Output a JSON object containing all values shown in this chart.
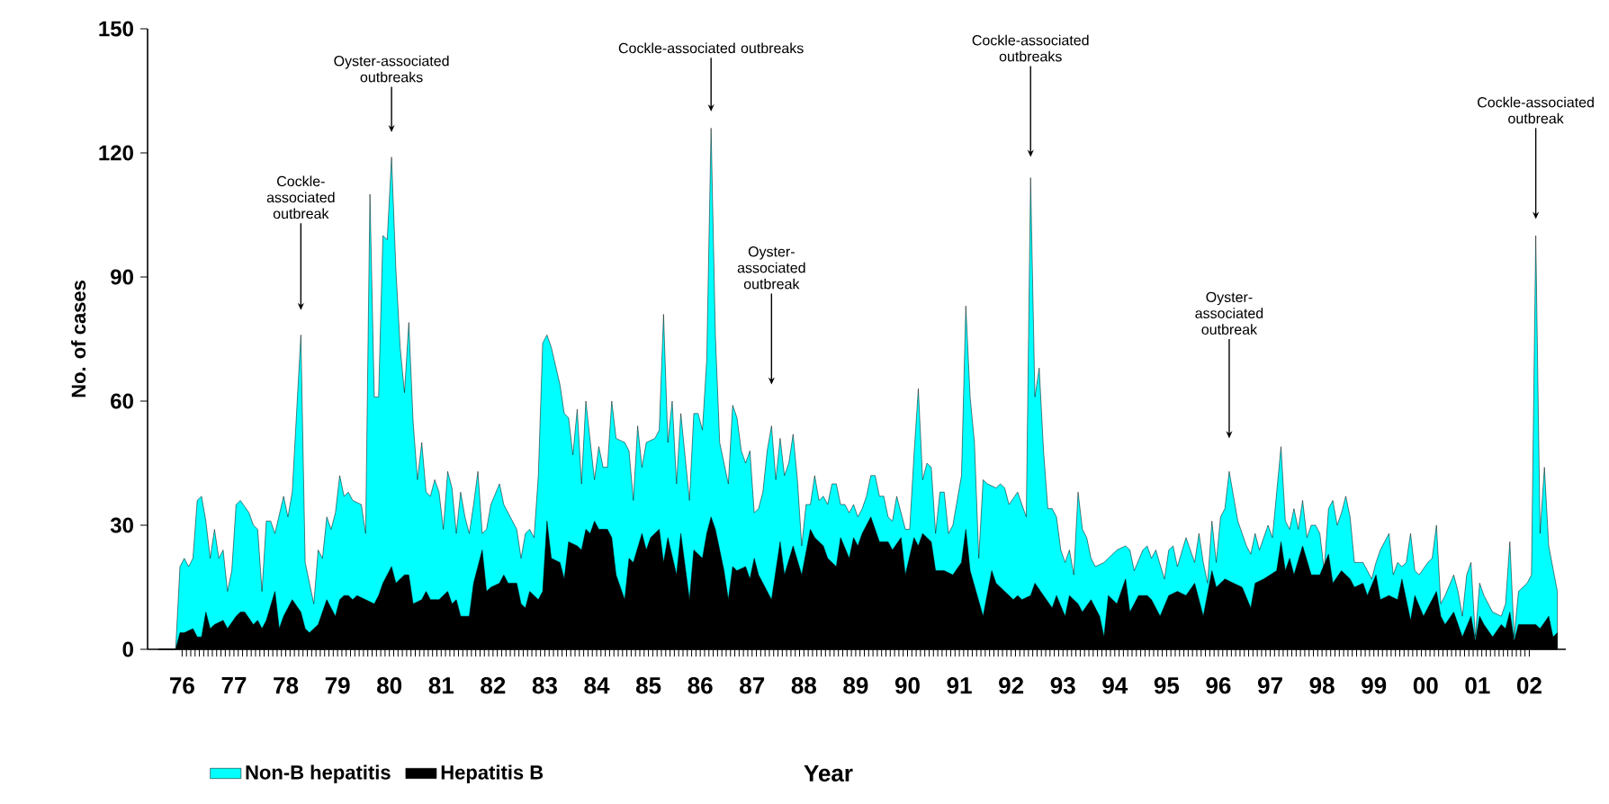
{
  "chart_data": {
    "type": "area",
    "xlabel": "Year",
    "ylabel": "No. of cases",
    "xlim": [
      "1975-11-01",
      "2003-03-15"
    ],
    "ylim": [
      0,
      150
    ],
    "yticks": [
      0,
      30,
      60,
      90,
      120,
      150
    ],
    "xticks": [
      {
        "value": "1976-07-01",
        "label": "76"
      },
      {
        "value": "1977-07-01",
        "label": "77"
      },
      {
        "value": "1978-07-01",
        "label": "78"
      },
      {
        "value": "1979-07-01",
        "label": "79"
      },
      {
        "value": "1980-07-01",
        "label": "80"
      },
      {
        "value": "1981-07-01",
        "label": "81"
      },
      {
        "value": "1982-07-01",
        "label": "82"
      },
      {
        "value": "1983-07-01",
        "label": "83"
      },
      {
        "value": "1984-07-01",
        "label": "84"
      },
      {
        "value": "1985-07-01",
        "label": "85"
      },
      {
        "value": "1986-07-01",
        "label": "86"
      },
      {
        "value": "1987-07-01",
        "label": "87"
      },
      {
        "value": "1988-07-01",
        "label": "88"
      },
      {
        "value": "1989-07-01",
        "label": "89"
      },
      {
        "value": "1990-07-01",
        "label": "90"
      },
      {
        "value": "1991-07-01",
        "label": "91"
      },
      {
        "value": "1992-07-01",
        "label": "92"
      },
      {
        "value": "1993-07-01",
        "label": "93"
      },
      {
        "value": "1994-07-01",
        "label": "94"
      },
      {
        "value": "1995-07-01",
        "label": "95"
      },
      {
        "value": "1996-07-01",
        "label": "96"
      },
      {
        "value": "1997-07-01",
        "label": "97"
      },
      {
        "value": "1998-07-01",
        "label": "98"
      },
      {
        "value": "1999-07-01",
        "label": "99"
      },
      {
        "value": "2000-07-01",
        "label": "00"
      },
      {
        "value": "2001-07-01",
        "label": "01"
      },
      {
        "value": "2002-07-01",
        "label": "02"
      }
    ],
    "legend": "bottom",
    "series": [
      {
        "name": "Non-B hepatitis",
        "color": "#00ffff",
        "x": [
          "1976-01",
          "1976-05",
          "1976-06",
          "1976-07",
          "1976-08",
          "1976-09",
          "1976-10",
          "1976-11",
          "1976-12",
          "1977-01",
          "1977-02",
          "1977-03",
          "1977-04",
          "1977-05",
          "1977-06",
          "1977-07",
          "1977-08",
          "1977-10",
          "1977-11",
          "1977-12",
          "1978-01",
          "1978-02",
          "1978-03",
          "1978-04",
          "1978-06",
          "1978-07",
          "1978-08",
          "1978-10",
          "1978-11",
          "1978-12",
          "1979-01",
          "1979-02",
          "1979-03",
          "1979-04",
          "1979-05",
          "1979-06",
          "1979-07",
          "1979-08",
          "1979-09",
          "1979-10",
          "1979-12",
          "1980-01",
          "1980-02",
          "1980-03",
          "1980-04",
          "1980-05",
          "1980-06",
          "1980-07",
          "1980-08",
          "1980-09",
          "1980-10",
          "1980-11",
          "1980-12",
          "1981-01",
          "1981-02",
          "1981-03",
          "1981-04",
          "1981-05",
          "1981-06",
          "1981-07",
          "1981-08",
          "1981-09",
          "1981-10",
          "1981-11",
          "1981-12",
          "1982-01",
          "1982-02",
          "1982-03",
          "1982-04",
          "1982-05",
          "1982-06",
          "1982-08",
          "1982-09",
          "1982-10",
          "1982-12",
          "1983-01",
          "1983-02",
          "1983-03",
          "1983-04",
          "1983-05",
          "1983-06",
          "1983-07",
          "1983-08",
          "1983-10",
          "1983-11",
          "1983-12",
          "1984-01",
          "1984-02",
          "1984-03",
          "1984-04",
          "1984-06",
          "1984-07",
          "1984-08",
          "1984-09",
          "1984-10",
          "1984-11",
          "1985-01",
          "1985-02",
          "1985-03",
          "1985-04",
          "1985-05",
          "1985-06",
          "1985-08",
          "1985-09",
          "1985-10",
          "1985-11",
          "1985-12",
          "1986-01",
          "1986-02",
          "1986-04",
          "1986-05",
          "1986-06",
          "1986-07",
          "1986-08",
          "1986-09",
          "1986-10",
          "1986-11",
          "1987-01",
          "1987-02",
          "1987-03",
          "1987-04",
          "1987-05",
          "1987-06",
          "1987-07",
          "1987-08",
          "1987-09",
          "1987-10",
          "1987-11",
          "1987-12",
          "1988-01",
          "1988-02",
          "1988-03",
          "1988-04",
          "1988-05",
          "1988-06",
          "1988-07",
          "1988-08",
          "1988-09",
          "1988-10",
          "1988-11",
          "1988-12",
          "1989-01",
          "1989-02",
          "1989-03",
          "1989-04",
          "1989-05",
          "1989-06",
          "1989-07",
          "1989-08",
          "1989-09",
          "1989-10",
          "1989-11",
          "1989-12",
          "1990-01",
          "1990-02",
          "1990-03",
          "1990-04",
          "1990-05",
          "1990-06",
          "1990-07",
          "1990-08",
          "1990-09",
          "1990-10",
          "1990-11",
          "1990-12",
          "1991-01",
          "1991-02",
          "1991-03",
          "1991-04",
          "1991-05",
          "1991-07",
          "1991-08",
          "1991-09",
          "1991-10",
          "1991-11",
          "1991-12",
          "1992-01",
          "1992-03",
          "1992-04",
          "1992-05",
          "1992-06",
          "1992-08",
          "1992-10",
          "1992-11",
          "1992-12",
          "1993-01",
          "1993-02",
          "1993-03",
          "1993-04",
          "1993-05",
          "1993-06",
          "1993-07",
          "1993-08",
          "1993-09",
          "1993-10",
          "1993-11",
          "1993-12",
          "1994-01",
          "1994-02",
          "1994-04",
          "1994-05",
          "1994-07",
          "1994-09",
          "1994-10",
          "1994-11",
          "1995-01",
          "1995-02",
          "1995-03",
          "1995-04",
          "1995-06",
          "1995-07",
          "1995-08",
          "1995-09",
          "1995-11",
          "1996-01",
          "1996-02",
          "1996-03",
          "1996-04",
          "1996-05",
          "1996-06",
          "1996-07",
          "1996-08",
          "1996-09",
          "1996-11",
          "1997-01",
          "1997-02",
          "1997-03",
          "1997-04",
          "1997-06",
          "1997-07",
          "1997-09",
          "1997-10",
          "1997-11",
          "1997-12",
          "1998-01",
          "1998-02",
          "1998-03",
          "1998-04",
          "1998-05",
          "1998-06",
          "1998-07",
          "1998-08",
          "1998-09",
          "1998-10",
          "1998-11",
          "1998-12",
          "1999-01",
          "1999-02",
          "1999-04",
          "1999-05",
          "1999-06",
          "1999-07",
          "1999-08",
          "1999-10",
          "1999-11",
          "1999-12",
          "2000-01",
          "2000-02",
          "2000-03",
          "2000-04",
          "2000-05",
          "2000-07",
          "2000-08",
          "2000-09",
          "2000-10",
          "2000-11",
          "2001-01",
          "2001-02",
          "2001-03",
          "2001-04",
          "2001-05",
          "2001-06",
          "2001-07",
          "2001-08",
          "2001-09",
          "2001-10",
          "2001-12",
          "2002-01",
          "2002-02",
          "2002-03",
          "2002-04",
          "2002-06",
          "2002-07",
          "2002-08",
          "2002-09",
          "2002-10",
          "2002-11",
          "2003-01"
        ],
        "values": [
          0,
          0,
          20,
          22,
          20,
          22,
          36,
          37,
          31,
          22,
          29,
          22,
          24,
          14,
          19,
          35,
          36,
          33,
          30,
          29,
          14,
          31,
          31,
          28,
          37,
          32,
          38,
          76,
          21,
          16,
          11,
          24,
          22,
          32,
          29,
          33,
          42,
          37,
          38,
          36,
          35,
          28,
          110,
          61,
          61,
          100,
          99,
          119,
          92,
          73,
          62,
          79,
          55,
          41,
          50,
          38,
          37,
          41,
          38,
          29,
          43,
          39,
          28,
          38,
          32,
          28,
          35,
          43,
          28,
          29,
          35,
          40,
          35,
          33,
          29,
          22,
          28,
          29,
          27,
          42,
          74,
          76,
          73,
          64,
          57,
          56,
          47,
          58,
          40,
          60,
          41,
          49,
          44,
          44,
          60,
          51,
          50,
          48,
          36,
          54,
          44,
          50,
          51,
          53,
          81,
          50,
          60,
          40,
          57,
          36,
          57,
          57,
          53,
          70,
          126,
          76,
          50,
          40,
          59,
          56,
          48,
          45,
          48,
          33,
          34,
          38,
          48,
          54,
          41,
          51,
          42,
          45,
          52,
          41,
          25,
          35,
          35,
          42,
          36,
          37,
          35,
          40,
          40,
          35,
          35,
          33,
          35,
          32,
          34,
          37,
          42,
          42,
          37,
          37,
          32,
          31,
          37,
          33,
          29,
          29,
          47,
          63,
          41,
          45,
          44,
          28,
          38,
          38,
          28,
          30,
          42,
          83,
          61,
          50,
          22,
          41,
          40,
          39,
          40,
          39,
          35,
          38,
          32,
          114,
          61,
          68,
          48,
          34,
          34,
          32,
          24,
          21,
          24,
          18,
          38,
          29,
          27,
          22,
          20,
          21,
          22,
          24,
          25,
          24,
          19,
          24,
          25,
          22,
          24,
          17,
          24,
          25,
          20,
          27,
          21,
          28,
          21,
          16,
          31,
          21,
          32,
          34,
          43,
          31,
          25,
          23,
          28,
          24,
          30,
          27,
          49,
          31,
          29,
          34,
          29,
          36,
          27,
          30,
          30,
          28,
          19,
          34,
          36,
          30,
          33,
          37,
          32,
          21,
          21,
          19,
          17,
          21,
          24,
          28,
          18,
          21,
          20,
          21,
          28,
          19,
          18,
          21,
          22,
          30,
          11,
          13,
          18,
          14,
          8,
          18,
          21,
          3,
          16,
          13,
          11,
          9,
          8,
          11,
          26,
          3,
          14,
          16,
          18,
          100,
          28,
          44,
          25,
          14
        ]
      },
      {
        "name": "Hepatitis B",
        "color": "#000000",
        "x": [
          "1976-01",
          "1976-05",
          "1976-06",
          "1976-07",
          "1976-09",
          "1976-10",
          "1976-11",
          "1976-12",
          "1977-01",
          "1977-02",
          "1977-04",
          "1977-05",
          "1977-07",
          "1977-08",
          "1977-09",
          "1977-11",
          "1977-12",
          "1978-01",
          "1978-02",
          "1978-04",
          "1978-05",
          "1978-06",
          "1978-08",
          "1978-10",
          "1978-11",
          "1978-12",
          "1979-02",
          "1979-03",
          "1979-04",
          "1979-06",
          "1979-07",
          "1979-08",
          "1979-09",
          "1979-10",
          "1979-11",
          "1980-01",
          "1980-03",
          "1980-04",
          "1980-05",
          "1980-07",
          "1980-08",
          "1980-10",
          "1980-11",
          "1980-12",
          "1981-02",
          "1981-03",
          "1981-04",
          "1981-06",
          "1981-08",
          "1981-09",
          "1981-10",
          "1981-11",
          "1982-01",
          "1982-02",
          "1982-04",
          "1982-05",
          "1982-06",
          "1982-08",
          "1982-09",
          "1982-10",
          "1982-12",
          "1983-01",
          "1983-02",
          "1983-03",
          "1983-05",
          "1983-06",
          "1983-07",
          "1983-08",
          "1983-10",
          "1983-11",
          "1983-12",
          "1984-02",
          "1984-03",
          "1984-04",
          "1984-05",
          "1984-06",
          "1984-07",
          "1984-09",
          "1984-10",
          "1984-11",
          "1985-01",
          "1985-02",
          "1985-03",
          "1985-05",
          "1985-06",
          "1985-07",
          "1985-09",
          "1985-10",
          "1985-11",
          "1986-01",
          "1986-02",
          "1986-04",
          "1986-05",
          "1986-07",
          "1986-08",
          "1986-09",
          "1986-10",
          "1986-12",
          "1987-01",
          "1987-02",
          "1987-03",
          "1987-05",
          "1987-06",
          "1987-07",
          "1987-08",
          "1987-10",
          "1987-11",
          "1987-12",
          "1988-01",
          "1988-02",
          "1988-04",
          "1988-06",
          "1988-08",
          "1988-09",
          "1988-11",
          "1988-12",
          "1989-02",
          "1989-03",
          "1989-05",
          "1989-06",
          "1989-07",
          "1989-08",
          "1989-10",
          "1989-12",
          "1990-02",
          "1990-03",
          "1990-05",
          "1990-06",
          "1990-08",
          "1990-09",
          "1990-10",
          "1990-12",
          "1991-01",
          "1991-03",
          "1991-05",
          "1991-07",
          "1991-08",
          "1991-09",
          "1991-12",
          "1992-02",
          "1992-03",
          "1992-05",
          "1992-07",
          "1992-08",
          "1992-09",
          "1992-11",
          "1992-12",
          "1993-02",
          "1993-04",
          "1993-05",
          "1993-07",
          "1993-08",
          "1993-10",
          "1993-11",
          "1994-01",
          "1994-03",
          "1994-04",
          "1994-05",
          "1994-07",
          "1994-09",
          "1994-10",
          "1994-12",
          "1995-02",
          "1995-03",
          "1995-05",
          "1995-07",
          "1995-09",
          "1995-11",
          "1996-01",
          "1996-03",
          "1996-05",
          "1996-06",
          "1996-08",
          "1996-10",
          "1996-12",
          "1997-02",
          "1997-03",
          "1997-05",
          "1997-08",
          "1997-09",
          "1997-10",
          "1997-11",
          "1997-12",
          "1998-02",
          "1998-04",
          "1998-06",
          "1998-08",
          "1998-09",
          "1998-11",
          "1999-01",
          "1999-02",
          "1999-04",
          "1999-05",
          "1999-07",
          "1999-08",
          "1999-10",
          "1999-12",
          "2000-01",
          "2000-03",
          "2000-04",
          "2000-06",
          "2000-08",
          "2000-09",
          "2000-10",
          "2000-11",
          "2001-01",
          "2001-02",
          "2001-03",
          "2001-05",
          "2001-06",
          "2001-07",
          "2001-08",
          "2001-10",
          "2001-12",
          "2002-01",
          "2002-02",
          "2002-03",
          "2002-04",
          "2002-06",
          "2002-08",
          "2002-09",
          "2002-11",
          "2002-12",
          "2003-01"
        ],
        "values": [
          0,
          0,
          4,
          4,
          5,
          3,
          3,
          9,
          5,
          6,
          7,
          5,
          8,
          9,
          9,
          6,
          7,
          5,
          7,
          14,
          5,
          8,
          12,
          9,
          5,
          4,
          6,
          9,
          12,
          8,
          12,
          13,
          13,
          12,
          13,
          12,
          11,
          13,
          16,
          20,
          16,
          18,
          18,
          11,
          12,
          14,
          12,
          12,
          14,
          11,
          12,
          8,
          8,
          16,
          24,
          14,
          15,
          16,
          18,
          16,
          16,
          11,
          10,
          14,
          12,
          14,
          31,
          22,
          21,
          17,
          26,
          25,
          24,
          29,
          28,
          31,
          29,
          29,
          27,
          18,
          12,
          22,
          21,
          28,
          24,
          27,
          29,
          21,
          27,
          18,
          28,
          12,
          24,
          22,
          28,
          32,
          29,
          19,
          12,
          20,
          19,
          20,
          17,
          22,
          18,
          14,
          12,
          19,
          26,
          18,
          25,
          18,
          29,
          27,
          25,
          22,
          20,
          27,
          22,
          27,
          25,
          28,
          32,
          26,
          26,
          24,
          27,
          18,
          27,
          25,
          28,
          26,
          19,
          19,
          18,
          21,
          29,
          19,
          8,
          19,
          16,
          14,
          12,
          13,
          12,
          13,
          16,
          13,
          10,
          13,
          8,
          13,
          11,
          9,
          12,
          8,
          3,
          13,
          11,
          17,
          9,
          13,
          13,
          12,
          8,
          13,
          14,
          13,
          16,
          8,
          19,
          15,
          17,
          16,
          15,
          10,
          16,
          17,
          19,
          26,
          19,
          22,
          18,
          25,
          18,
          18,
          23,
          16,
          19,
          17,
          15,
          16,
          13,
          18,
          12,
          13,
          12,
          17,
          7,
          13,
          8,
          12,
          14,
          8,
          6,
          9,
          6,
          3,
          8,
          2,
          8,
          6,
          3,
          6,
          5,
          9,
          2,
          6,
          6,
          6,
          5,
          8,
          3,
          4
        ]
      }
    ],
    "annotations": [
      {
        "text": "Cockle-associated outbreak",
        "x": "1978-10",
        "y": 82
      },
      {
        "text": "Oyster-associated outbreaks",
        "x": "1980-07",
        "y": 125
      },
      {
        "text": "Cockle-associated outbreaks",
        "x": "1986-09",
        "y": 130
      },
      {
        "text": "Oyster-associated outbreak",
        "x": "1987-11",
        "y": 64
      },
      {
        "text": "Cockle-associated outbreaks",
        "x": "1992-11",
        "y": 119
      },
      {
        "text": "Oyster-associated outbreak",
        "x": "1996-09",
        "y": 51
      },
      {
        "text": "Cockle-associated outbreak",
        "x": "2002-08",
        "y": 104
      }
    ]
  }
}
